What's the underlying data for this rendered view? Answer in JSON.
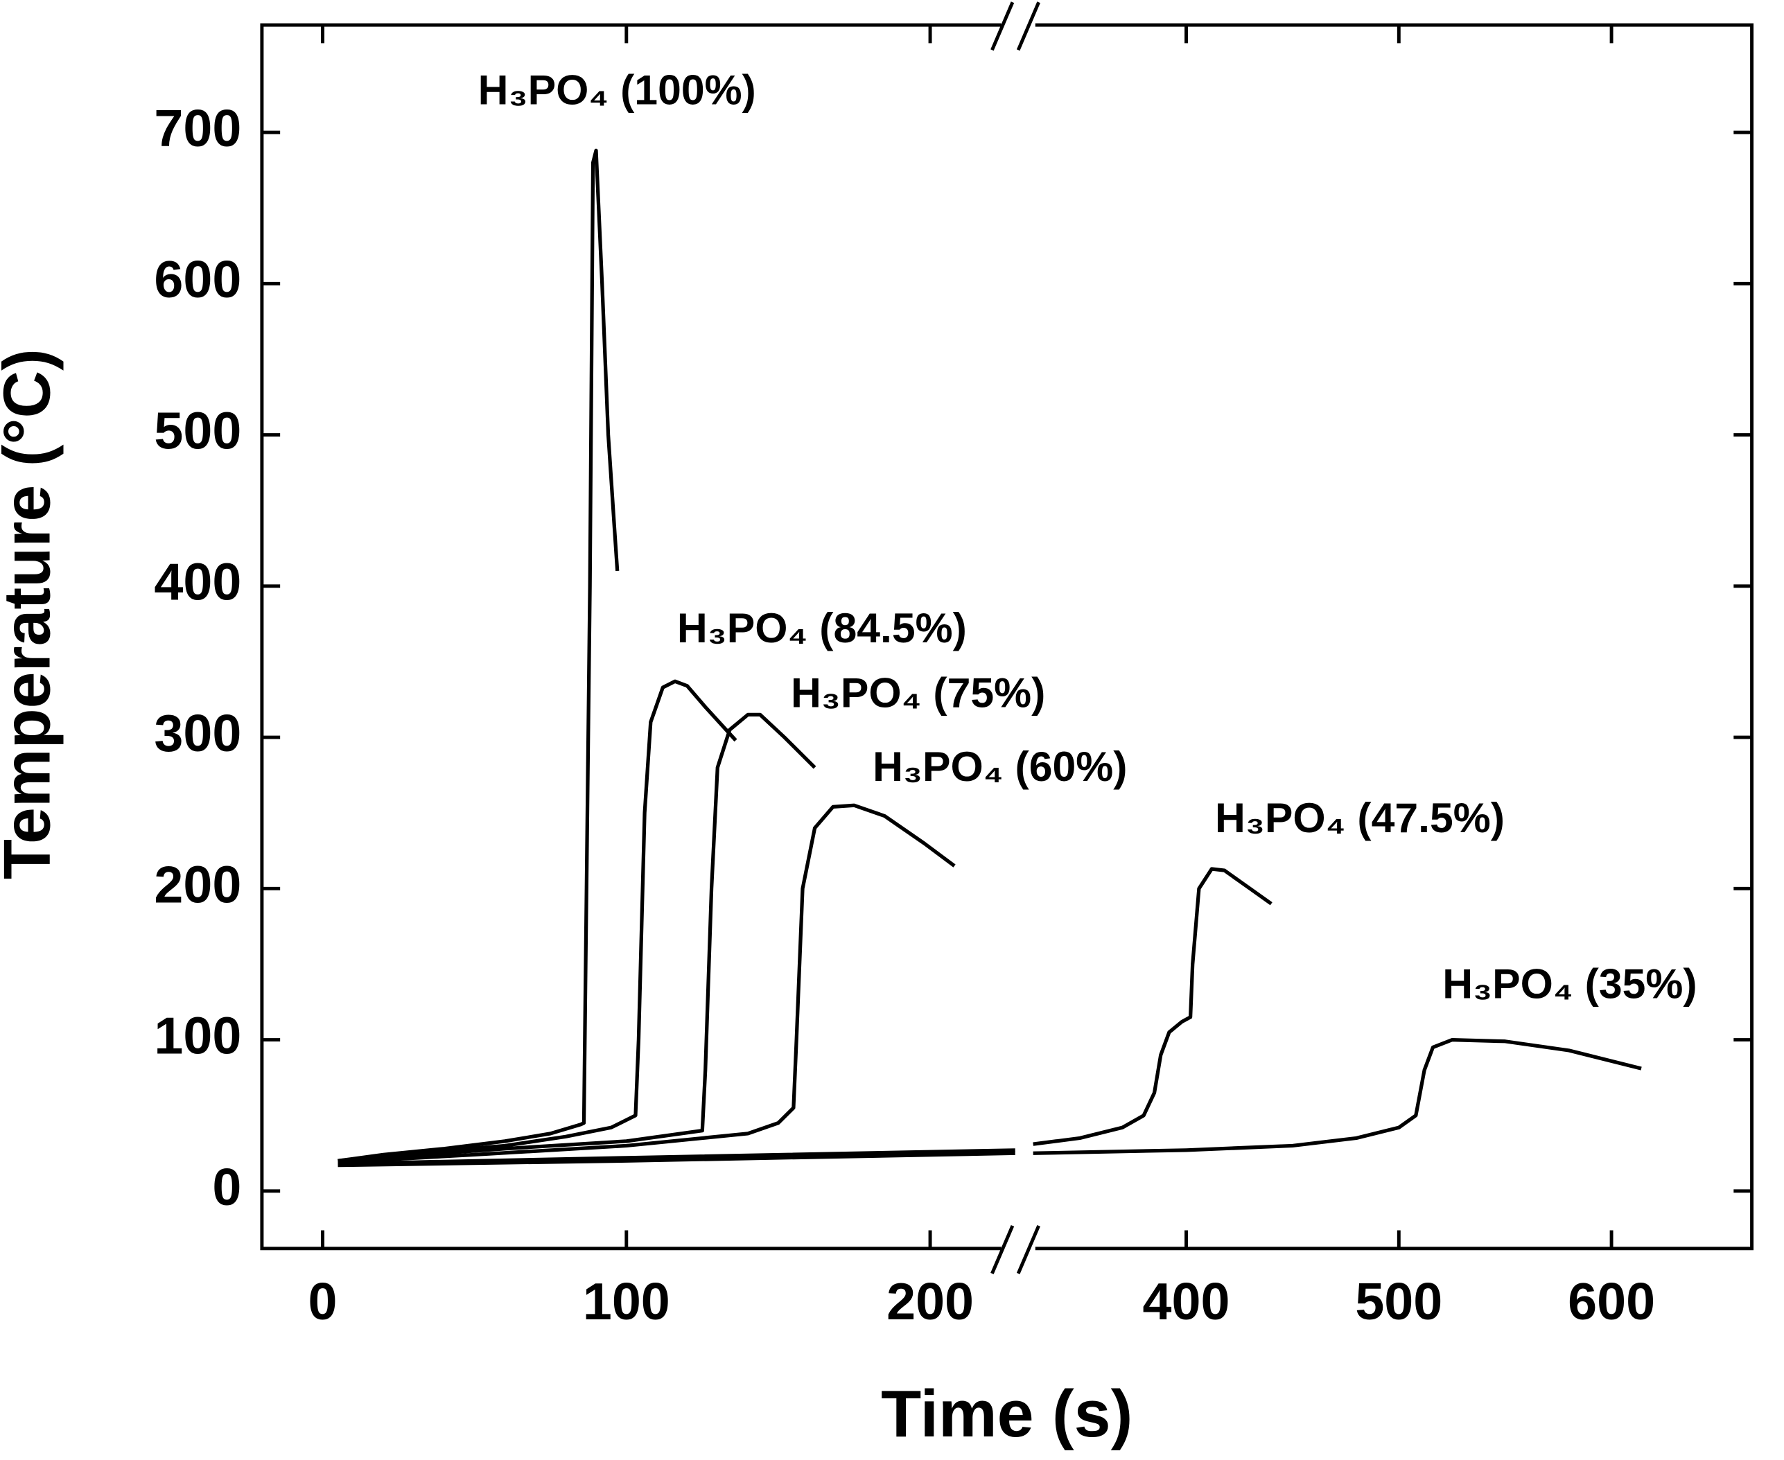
{
  "chart_data": {
    "type": "line",
    "xlabel": "Time (s)",
    "ylabel": "Temperature (°C)",
    "xlim": [
      -20,
      666
    ],
    "xbreak": [
      229,
      321
    ],
    "ylim": [
      -38,
      771
    ],
    "xticks": [
      0,
      100,
      200,
      400,
      500,
      600
    ],
    "yticks": [
      0,
      100,
      200,
      300,
      400,
      500,
      600,
      700
    ],
    "color": "#000000",
    "series": [
      {
        "name": "H₃PO₄ (100%)",
        "x": [
          5,
          20,
          40,
          60,
          75,
          85,
          86,
          88,
          89,
          90,
          92,
          94,
          96,
          97
        ],
        "values": [
          20,
          24,
          28,
          33,
          38,
          44,
          45,
          400,
          680,
          688,
          600,
          500,
          440,
          410
        ]
      },
      {
        "name": "H₃PO₄ (84.5%)",
        "x": [
          5,
          30,
          60,
          80,
          95,
          103,
          104,
          106,
          108,
          112,
          116,
          120,
          126,
          136
        ],
        "values": [
          20,
          25,
          30,
          36,
          42,
          50,
          100,
          250,
          310,
          333,
          337,
          334,
          320,
          298
        ]
      },
      {
        "name": "H₃PO₄ (75%)",
        "x": [
          5,
          60,
          100,
          125,
          126,
          128,
          130,
          134,
          140,
          144,
          152,
          162
        ],
        "values": [
          20,
          28,
          33,
          40,
          80,
          200,
          280,
          305,
          315,
          315,
          300,
          280
        ]
      },
      {
        "name": "H₃PO₄ (60%)",
        "x": [
          5,
          50,
          100,
          140,
          150,
          155,
          156,
          158,
          162,
          168,
          175,
          185,
          198,
          208
        ],
        "values": [
          19,
          24,
          30,
          38,
          45,
          55,
          100,
          200,
          240,
          254,
          255,
          248,
          230,
          215
        ]
      },
      {
        "name": "H₃PO₄ (47.5%)",
        "x": [
          5,
          100,
          228,
          300,
          328,
          350,
          370,
          380,
          385,
          388,
          392,
          398,
          402,
          403,
          406,
          412,
          418,
          430,
          440
        ],
        "values": [
          18,
          22,
          27,
          null,
          31,
          35,
          42,
          50,
          65,
          90,
          105,
          112,
          115,
          150,
          200,
          213,
          212,
          200,
          190
        ]
      },
      {
        "name": "H₃PO₄ (35%)",
        "x": [
          5,
          100,
          228,
          300,
          328,
          400,
          450,
          480,
          500,
          508,
          512,
          516,
          525,
          550,
          580,
          614
        ],
        "values": [
          17,
          20,
          25,
          null,
          25,
          27,
          30,
          35,
          42,
          50,
          80,
          95,
          100,
          99,
          93,
          81
        ]
      }
    ]
  }
}
